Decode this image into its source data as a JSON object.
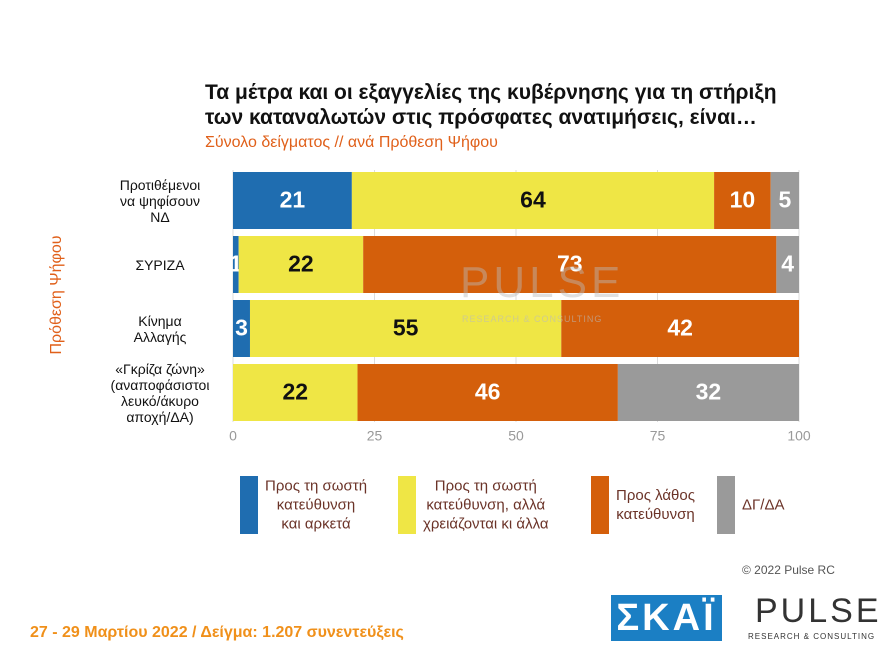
{
  "chart_data": {
    "type": "stacked-bar-horizontal",
    "title": "Τα μέτρα και οι εξαγγελίες της κυβέρνησης για τη στήριξη\nτων καταναλωτών στις πρόσφατες ανατιμήσεις, είναι…",
    "subtitle": "Σύνολο δείγματος // ανά Πρόθεση Ψήφου",
    "y_label": "Πρόθεση Ψήφου",
    "categories": [
      "Προτιθέμενοι\nνα ψηφίσουν\nΝΔ",
      "ΣΥΡΙΖΑ",
      "Κίνημα\nΑλλαγής",
      "«Γκρίζα ζώνη»\n(αναποφάσιστοι\nλευκό/άκυρο\nαποχή/ΔΑ)"
    ],
    "series": [
      {
        "name": "Προς τη σωστή\nκατεύθυνση\nκαι αρκετά",
        "color": "#1f6db0",
        "values": [
          21,
          1,
          3,
          null
        ]
      },
      {
        "name": "Προς τη σωστή\nκατεύθυνση, αλλά\nχρειάζονται κι άλλα",
        "color": "#efe645",
        "values": [
          64,
          22,
          55,
          22
        ]
      },
      {
        "name": "Προς λάθος\nκατεύθυνση",
        "color": "#d45f0b",
        "values": [
          10,
          73,
          42,
          46
        ]
      },
      {
        "name": "ΔΓ/ΔΑ",
        "color": "#9a9a9a",
        "values": [
          5,
          4,
          null,
          32
        ]
      }
    ],
    "xlim": [
      0,
      100
    ],
    "xticks": [
      0,
      25,
      50,
      75,
      100
    ],
    "grid": true
  },
  "watermark": {
    "brand": "PULSE",
    "tagline": "RESEARCH & CONSULTING"
  },
  "footer": {
    "copyright": "© 2022 Pulse RC",
    "note": "27 - 29 Μαρτίου 2022 / Δείγμα: 1.207 συνεντεύξεις",
    "logo_skai": "ΣΚΑΪ",
    "logo_pulse": "PULSE",
    "logo_pulse_tagline": "RESEARCH & CONSULTING"
  }
}
